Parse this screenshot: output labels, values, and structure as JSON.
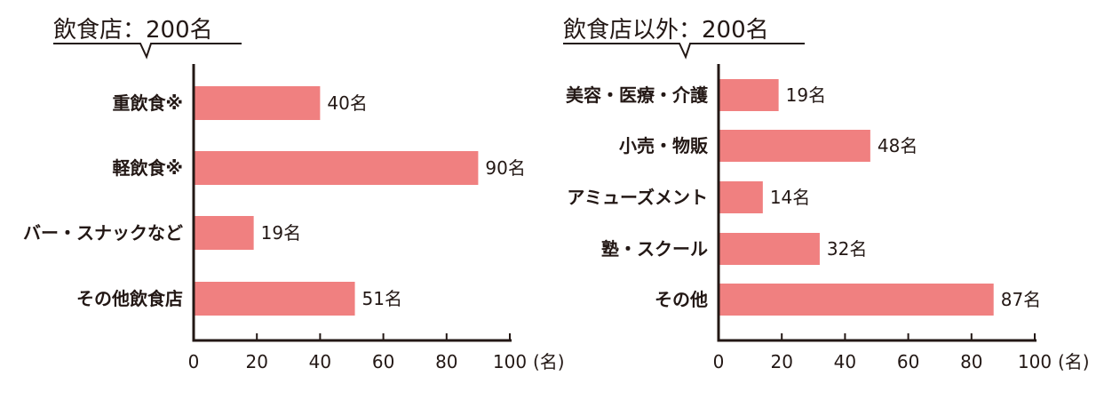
{
  "chart_data": [
    {
      "type": "bar",
      "orientation": "horizontal",
      "title": "飲食店：200名",
      "categories": [
        "重飲食※",
        "軽飲食※",
        "バー・スナックなど",
        "その他飲食店"
      ],
      "values": [
        40,
        90,
        19,
        51
      ],
      "data_labels": [
        "40名",
        "90名",
        "19名",
        "51名"
      ],
      "xlim": [
        0,
        100
      ],
      "xticks": [
        "0",
        "20",
        "40",
        "60",
        "80",
        "100"
      ],
      "xunit": "(名)",
      "grid": false,
      "bar_color": "#f08080"
    },
    {
      "type": "bar",
      "orientation": "horizontal",
      "title": "飲食店以外：200名",
      "categories": [
        "美容・医療・介護",
        "小売・物販",
        "アミューズメント",
        "塾・スクール",
        "その他"
      ],
      "values": [
        19,
        48,
        14,
        32,
        87
      ],
      "data_labels": [
        "19名",
        "48名",
        "14名",
        "32名",
        "87名"
      ],
      "xlim": [
        0,
        100
      ],
      "xticks": [
        "0",
        "20",
        "40",
        "60",
        "80",
        "100"
      ],
      "xunit": "(名)",
      "grid": false,
      "bar_color": "#f08080"
    }
  ]
}
